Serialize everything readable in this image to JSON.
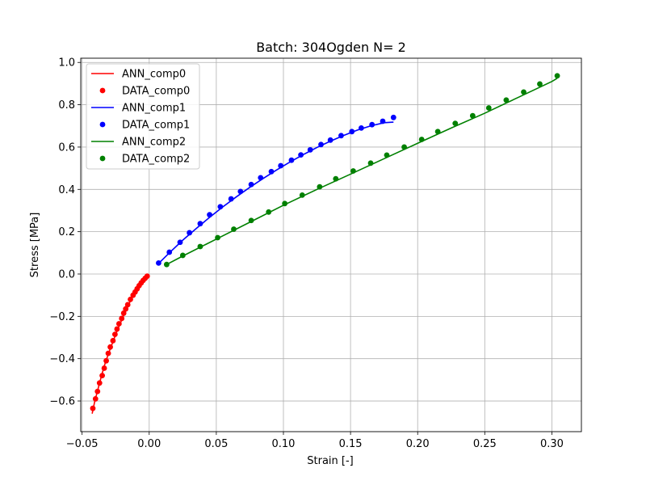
{
  "chart_data": {
    "type": "scatter",
    "title": "Batch: 304Ogden N= 2",
    "xlabel": "Strain [-]",
    "ylabel": "Stress [MPa]",
    "xlim": [
      -0.051,
      0.322
    ],
    "ylim": [
      -0.745,
      1.02
    ],
    "x_ticks": [
      -0.05,
      0.0,
      0.05,
      0.1,
      0.15,
      0.2,
      0.25,
      0.3
    ],
    "x_tick_labels": [
      "−0.05",
      "0.00",
      "0.05",
      "0.10",
      "0.15",
      "0.20",
      "0.25",
      "0.30"
    ],
    "y_ticks": [
      -0.6,
      -0.4,
      -0.2,
      0.0,
      0.2,
      0.4,
      0.6,
      0.8,
      1.0
    ],
    "y_tick_labels": [
      "−0.6",
      "−0.4",
      "−0.2",
      "0.0",
      "0.2",
      "0.4",
      "0.6",
      "0.8",
      "1.0"
    ],
    "grid": true,
    "legend_position": "top-left",
    "series": [
      {
        "name": "ANN_comp0",
        "kind": "line",
        "color": "#ff0000",
        "x": [
          -0.0425,
          -0.0405,
          -0.038,
          -0.0355,
          -0.033,
          -0.03,
          -0.027,
          -0.024,
          -0.021,
          -0.018,
          -0.015,
          -0.012,
          -0.009,
          -0.006,
          -0.003,
          -0.001
        ],
        "y": [
          -0.66,
          -0.6,
          -0.54,
          -0.48,
          -0.425,
          -0.37,
          -0.32,
          -0.27,
          -0.225,
          -0.18,
          -0.14,
          -0.1,
          -0.07,
          -0.045,
          -0.025,
          -0.012
        ]
      },
      {
        "name": "DATA_comp0",
        "kind": "scatter",
        "color": "#ff0000",
        "x": [
          -0.042,
          -0.04,
          -0.0385,
          -0.037,
          -0.035,
          -0.0335,
          -0.032,
          -0.0305,
          -0.029,
          -0.027,
          -0.0255,
          -0.024,
          -0.0225,
          -0.0205,
          -0.019,
          -0.0175,
          -0.016,
          -0.014,
          -0.012,
          -0.0105,
          -0.009,
          -0.0075,
          -0.006,
          -0.0045,
          -0.003,
          -0.0015
        ],
        "y": [
          -0.635,
          -0.59,
          -0.555,
          -0.515,
          -0.48,
          -0.445,
          -0.41,
          -0.375,
          -0.345,
          -0.315,
          -0.285,
          -0.26,
          -0.235,
          -0.21,
          -0.185,
          -0.165,
          -0.145,
          -0.12,
          -0.1,
          -0.085,
          -0.07,
          -0.055,
          -0.042,
          -0.03,
          -0.02,
          -0.01
        ]
      },
      {
        "name": "ANN_comp1",
        "kind": "line",
        "color": "#0000ff",
        "x": [
          0.007,
          0.015,
          0.025,
          0.035,
          0.045,
          0.055,
          0.065,
          0.075,
          0.085,
          0.095,
          0.105,
          0.115,
          0.125,
          0.135,
          0.145,
          0.155,
          0.165,
          0.175,
          0.182
        ],
        "y": [
          0.05,
          0.1,
          0.16,
          0.215,
          0.268,
          0.318,
          0.365,
          0.41,
          0.452,
          0.492,
          0.53,
          0.565,
          0.598,
          0.628,
          0.655,
          0.68,
          0.7,
          0.715,
          0.718
        ]
      },
      {
        "name": "DATA_comp1",
        "kind": "scatter",
        "color": "#0000ff",
        "x": [
          0.007,
          0.015,
          0.023,
          0.03,
          0.038,
          0.045,
          0.053,
          0.061,
          0.068,
          0.076,
          0.083,
          0.091,
          0.098,
          0.106,
          0.113,
          0.12,
          0.128,
          0.135,
          0.143,
          0.151,
          0.158,
          0.166,
          0.174,
          0.182
        ],
        "y": [
          0.052,
          0.103,
          0.15,
          0.195,
          0.238,
          0.28,
          0.318,
          0.355,
          0.39,
          0.423,
          0.455,
          0.484,
          0.512,
          0.538,
          0.563,
          0.587,
          0.612,
          0.633,
          0.654,
          0.673,
          0.69,
          0.706,
          0.722,
          0.74
        ]
      },
      {
        "name": "ANN_comp2",
        "kind": "line",
        "color": "#008000",
        "x": [
          0.013,
          0.025,
          0.05,
          0.075,
          0.1,
          0.125,
          0.15,
          0.175,
          0.2,
          0.225,
          0.25,
          0.275,
          0.3,
          0.304
        ],
        "y": [
          0.045,
          0.085,
          0.165,
          0.245,
          0.325,
          0.4,
          0.472,
          0.545,
          0.618,
          0.69,
          0.76,
          0.835,
          0.91,
          0.925
        ]
      },
      {
        "name": "DATA_comp2",
        "kind": "scatter",
        "color": "#008000",
        "x": [
          0.013,
          0.025,
          0.038,
          0.051,
          0.063,
          0.076,
          0.089,
          0.101,
          0.114,
          0.127,
          0.139,
          0.152,
          0.165,
          0.177,
          0.19,
          0.203,
          0.215,
          0.228,
          0.241,
          0.253,
          0.266,
          0.279,
          0.291,
          0.304
        ],
        "y": [
          0.045,
          0.088,
          0.13,
          0.172,
          0.212,
          0.253,
          0.293,
          0.333,
          0.373,
          0.412,
          0.45,
          0.487,
          0.524,
          0.562,
          0.6,
          0.636,
          0.673,
          0.712,
          0.748,
          0.785,
          0.822,
          0.86,
          0.898,
          0.937
        ]
      }
    ]
  }
}
